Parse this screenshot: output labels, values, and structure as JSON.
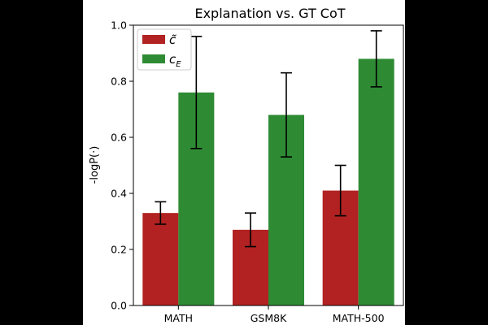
{
  "chart_data": {
    "type": "bar",
    "title": "Explanation vs. GT CoT",
    "xlabel": "",
    "ylabel": "-logP(·)",
    "ylim": [
      0.0,
      1.0
    ],
    "yticks": [
      "0.0",
      "0.2",
      "0.4",
      "0.6",
      "0.8",
      "1.0"
    ],
    "categories": [
      "MATH",
      "GSM8K",
      "MATH-500"
    ],
    "series": [
      {
        "name": "c̃",
        "color": "#b22222",
        "values": [
          0.33,
          0.27,
          0.41
        ],
        "error_low": [
          0.29,
          0.21,
          0.32
        ],
        "error_high": [
          0.37,
          0.33,
          0.5
        ]
      },
      {
        "name": "c_E",
        "color": "#2e8b34",
        "values": [
          0.76,
          0.68,
          0.88
        ],
        "error_low": [
          0.56,
          0.53,
          0.78
        ],
        "error_high": [
          0.96,
          0.83,
          0.98
        ]
      }
    ],
    "grid": false,
    "legend_position": "top-left"
  }
}
